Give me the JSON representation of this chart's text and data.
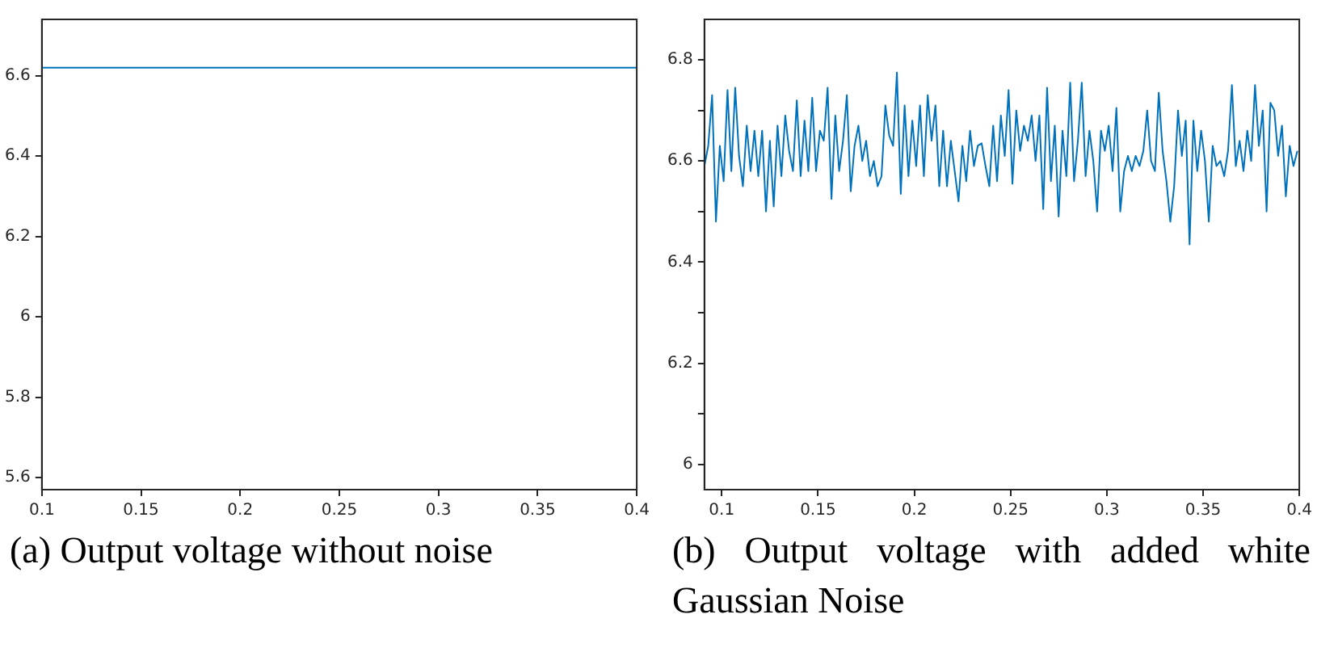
{
  "chart_data": [
    {
      "type": "line",
      "title": "(a) Output voltage without noise",
      "x": [
        0.1,
        0.4
      ],
      "series": [
        {
          "color": "#0072bd",
          "values": [
            6.62,
            6.62
          ]
        }
      ],
      "xlim": [
        0.1,
        0.4
      ],
      "xticks": [
        0.1,
        0.15,
        0.2,
        0.25,
        0.3,
        0.35,
        0.4
      ],
      "ylim": [
        5.57,
        6.74
      ],
      "yticks": [
        5.6,
        5.8,
        6,
        6.2,
        6.4,
        6.6
      ],
      "grid": false,
      "legend": false,
      "marker": "none",
      "line_style": "solid"
    },
    {
      "type": "line",
      "title": "(b) Output voltage with added white Gaussian Noise",
      "x": [
        0.091,
        0.093,
        0.095,
        0.097,
        0.099,
        0.101,
        0.103,
        0.105,
        0.107,
        0.109,
        0.111,
        0.113,
        0.115,
        0.117,
        0.119,
        0.121,
        0.123,
        0.125,
        0.127,
        0.129,
        0.131,
        0.133,
        0.135,
        0.137,
        0.139,
        0.141,
        0.143,
        0.145,
        0.147,
        0.149,
        0.151,
        0.153,
        0.155,
        0.157,
        0.159,
        0.161,
        0.163,
        0.165,
        0.167,
        0.169,
        0.171,
        0.173,
        0.175,
        0.177,
        0.179,
        0.181,
        0.183,
        0.185,
        0.187,
        0.189,
        0.191,
        0.193,
        0.195,
        0.197,
        0.199,
        0.201,
        0.203,
        0.205,
        0.207,
        0.209,
        0.211,
        0.213,
        0.215,
        0.217,
        0.219,
        0.221,
        0.223,
        0.225,
        0.227,
        0.229,
        0.231,
        0.233,
        0.235,
        0.237,
        0.239,
        0.241,
        0.243,
        0.245,
        0.247,
        0.249,
        0.251,
        0.253,
        0.255,
        0.257,
        0.259,
        0.261,
        0.263,
        0.265,
        0.267,
        0.269,
        0.271,
        0.273,
        0.275,
        0.277,
        0.279,
        0.281,
        0.283,
        0.285,
        0.287,
        0.289,
        0.291,
        0.293,
        0.295,
        0.297,
        0.299,
        0.301,
        0.303,
        0.305,
        0.307,
        0.309,
        0.311,
        0.313,
        0.315,
        0.317,
        0.319,
        0.321,
        0.323,
        0.325,
        0.327,
        0.329,
        0.331,
        0.333,
        0.335,
        0.337,
        0.339,
        0.341,
        0.343,
        0.345,
        0.347,
        0.349,
        0.351,
        0.353,
        0.355,
        0.357,
        0.359,
        0.361,
        0.363,
        0.365,
        0.367,
        0.369,
        0.371,
        0.373,
        0.375,
        0.377,
        0.379,
        0.381,
        0.383,
        0.385,
        0.387,
        0.389,
        0.391,
        0.393,
        0.395,
        0.397,
        0.399
      ],
      "series": [
        {
          "color": "#0072bd",
          "values": [
            6.59,
            6.63,
            6.73,
            6.48,
            6.63,
            6.56,
            6.74,
            6.58,
            6.745,
            6.61,
            6.55,
            6.67,
            6.58,
            6.66,
            6.57,
            6.66,
            6.5,
            6.64,
            6.51,
            6.67,
            6.57,
            6.69,
            6.62,
            6.58,
            6.72,
            6.57,
            6.68,
            6.58,
            6.725,
            6.58,
            6.66,
            6.64,
            6.745,
            6.525,
            6.69,
            6.58,
            6.64,
            6.73,
            6.54,
            6.63,
            6.67,
            6.6,
            6.64,
            6.57,
            6.6,
            6.55,
            6.57,
            6.71,
            6.65,
            6.63,
            6.775,
            6.535,
            6.71,
            6.57,
            6.68,
            6.59,
            6.71,
            6.57,
            6.73,
            6.64,
            6.71,
            6.55,
            6.66,
            6.55,
            6.64,
            6.58,
            6.52,
            6.63,
            6.56,
            6.66,
            6.59,
            6.63,
            6.635,
            6.59,
            6.55,
            6.67,
            6.56,
            6.69,
            6.61,
            6.74,
            6.555,
            6.7,
            6.62,
            6.67,
            6.64,
            6.69,
            6.6,
            6.69,
            6.505,
            6.745,
            6.56,
            6.67,
            6.49,
            6.66,
            6.57,
            6.755,
            6.56,
            6.64,
            6.755,
            6.57,
            6.66,
            6.6,
            6.5,
            6.66,
            6.62,
            6.67,
            6.58,
            6.705,
            6.5,
            6.58,
            6.61,
            6.58,
            6.61,
            6.59,
            6.62,
            6.7,
            6.6,
            6.58,
            6.735,
            6.62,
            6.56,
            6.48,
            6.55,
            6.7,
            6.61,
            6.68,
            6.435,
            6.68,
            6.58,
            6.66,
            6.6,
            6.48,
            6.63,
            6.59,
            6.6,
            6.57,
            6.62,
            6.75,
            6.59,
            6.64,
            6.58,
            6.66,
            6.6,
            6.75,
            6.63,
            6.7,
            6.5,
            6.715,
            6.7,
            6.61,
            6.67,
            6.53,
            6.63,
            6.59,
            6.62
          ]
        }
      ],
      "xlim": [
        0.091,
        0.4
      ],
      "xticks": [
        0.1,
        0.15,
        0.2,
        0.25,
        0.3,
        0.35,
        0.4
      ],
      "ylim": [
        5.95,
        6.88
      ],
      "yticks": [
        6,
        {
          "value": 6.1,
          "label": null
        },
        6.2,
        {
          "value": 6.3,
          "label": null
        },
        6.4,
        {
          "value": 6.5,
          "label": null
        },
        6.6,
        {
          "value": 6.7,
          "label": null
        },
        6.8
      ],
      "grid": false,
      "legend": false,
      "marker": "none",
      "line_style": "solid"
    }
  ]
}
